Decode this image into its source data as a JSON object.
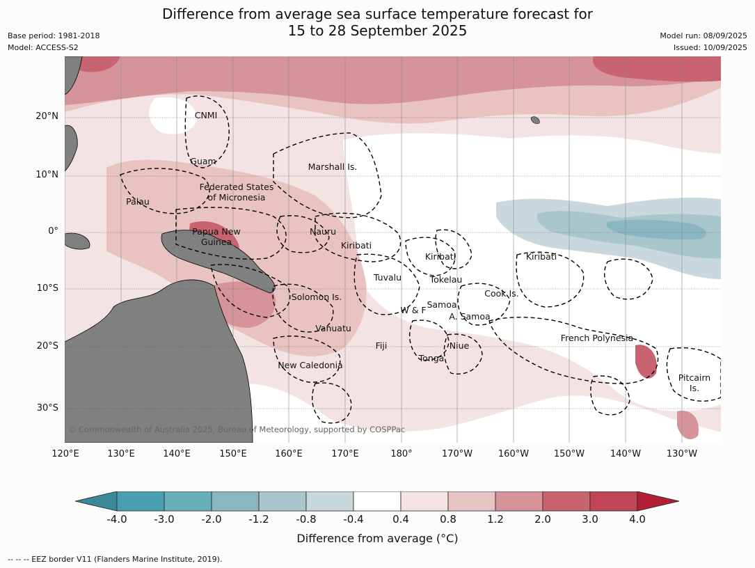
{
  "title_line1": "Difference from average sea surface temperature forecast for",
  "title_line2": "15 to 28 September 2025",
  "meta": {
    "base_period": "Base period: 1981-2018",
    "model": "Model: ACCESS-S2",
    "model_run": "Model run: 08/09/2025",
    "issued": "Issued: 10/09/2025"
  },
  "axes": {
    "lat_labels": [
      "20°N",
      "10°N",
      "0°",
      "10°S",
      "20°S",
      "30°S"
    ],
    "lon_labels": [
      "120°E",
      "130°E",
      "140°E",
      "150°E",
      "160°E",
      "170°E",
      "180°",
      "170°W",
      "160°W",
      "150°W",
      "140°W",
      "130°W"
    ]
  },
  "regions": [
    "CNMI",
    "Guam",
    "Marshall Is.",
    "Palau",
    "Federated States",
    "of Micronesia",
    "Nauru",
    "Papua New",
    "Guinea",
    "Kiribati",
    "Kiribati",
    "Kiribati",
    "Tuvalu",
    "Tokelau",
    "Solomon Is.",
    "Cook Is.",
    "W & F",
    "Samoa",
    "A. Samoa",
    "Vanuatu",
    "Fiji",
    "Niue",
    "French Polynesia",
    "Tonga",
    "New Caledonia",
    "Pitcairn",
    "Is."
  ],
  "copyright": "© Commonwealth of Australia 2025, Bureau of Meteorology, supported by COSPPac",
  "colorbar": {
    "labels": [
      "-4.0",
      "-3.0",
      "-2.0",
      "-1.2",
      "-0.8",
      "-0.4",
      "0.4",
      "0.8",
      "1.2",
      "2.0",
      "3.0",
      "4.0"
    ],
    "colors": [
      "#3b8a98",
      "#4aa0b3",
      "#6aadbc",
      "#8ab6c2",
      "#a8c6cc",
      "#c9d8dc",
      "#ffffff",
      "#f4e3e3",
      "#e8c3c2",
      "#d7939a",
      "#c8646f",
      "#c04657",
      "#b22037"
    ],
    "title": "Difference from average (°C)"
  },
  "footnote": "--  --  -- EEZ border V11 (Flanders Marine Institute, 2019).",
  "colors": {
    "land": "#808080",
    "anom_pos_light": "#f4e3e3",
    "anom_pos_med": "#e8c3c2",
    "anom_pos_strong": "#d7939a",
    "anom_pos_vstrong": "#c8646f",
    "anom_neg_light": "#c9d8dc",
    "anom_neg_med": "#a8c6cc",
    "anom_neg_strong": "#8ab6c2"
  }
}
